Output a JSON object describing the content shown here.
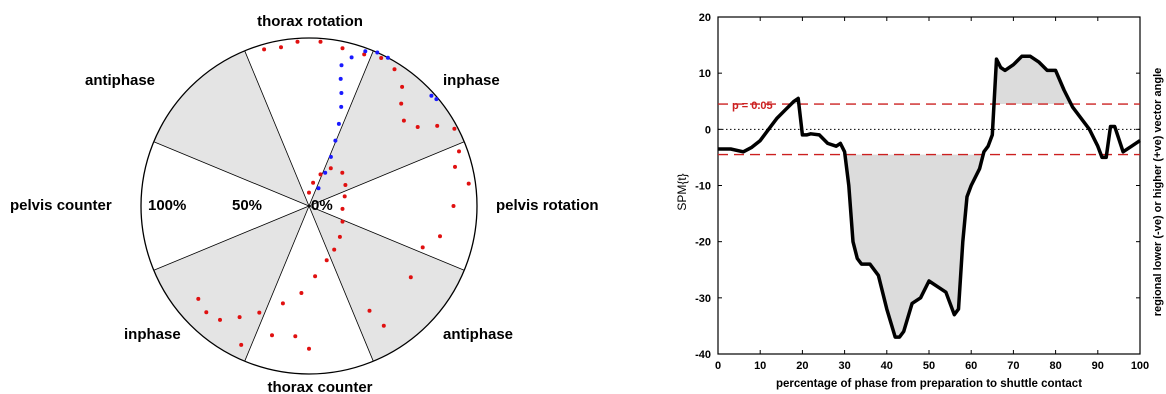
{
  "chart_data": [
    {
      "type": "polar-scatter",
      "sector_labels": {
        "top": "thorax rotation",
        "upper_right": "inphase",
        "right": "pelvis rotation",
        "lower_right": "antiphase",
        "bottom": "thorax counter",
        "lower_left": "inphase",
        "left": "pelvis counter",
        "upper_left": "antiphase"
      },
      "radial_labels": [
        "100%",
        "50%",
        "0%"
      ],
      "shaded_sectors_deg": [
        [
          22.5,
          67.5
        ],
        [
          112.5,
          157.5
        ],
        [
          202.5,
          247.5
        ],
        [
          292.5,
          337.5
        ]
      ],
      "colors": {
        "red_series": "#e01010",
        "blue_series": "#1a1aff",
        "shade": "#e4e4e4"
      },
      "series": [
        {
          "color": "red",
          "style": "dots",
          "points": [
            [
              0,
              0.08
            ],
            [
              10,
              0.14
            ],
            [
              20,
              0.2
            ],
            [
              30,
              0.26
            ],
            [
              45,
              0.28
            ],
            [
              60,
              0.25
            ],
            [
              75,
              0.22
            ],
            [
              95,
              0.2
            ],
            [
              115,
              0.22
            ],
            [
              135,
              0.26
            ],
            [
              150,
              0.3
            ],
            [
              162,
              0.34
            ],
            [
              175,
              0.42
            ],
            [
              185,
              0.52
            ],
            [
              195,
              0.6
            ],
            [
              205,
              0.7
            ],
            [
              212,
              0.78
            ],
            [
              218,
              0.86
            ],
            [
              224,
              0.88
            ],
            [
              230,
              0.86
            ],
            [
              206,
              0.92
            ],
            [
              196,
              0.8
            ],
            [
              186,
              0.78
            ],
            [
              180,
              0.85
            ],
            [
              150,
              0.72
            ],
            [
              148,
              0.84
            ],
            [
              125,
              0.74
            ],
            [
              110,
              0.72
            ],
            [
              103,
              0.8
            ],
            [
              90,
              0.86
            ],
            [
              82,
              0.96
            ],
            [
              75,
              0.9
            ],
            [
              70,
              0.95
            ],
            [
              62,
              0.98
            ],
            [
              58,
              0.9
            ],
            [
              54,
              0.8
            ],
            [
              48,
              0.76
            ],
            [
              42,
              0.82
            ],
            [
              38,
              0.9
            ],
            [
              32,
              0.96
            ],
            [
              26,
              0.98
            ],
            [
              20,
              0.96
            ],
            [
              12,
              0.96
            ],
            [
              4,
              0.98
            ],
            [
              -4,
              0.98
            ],
            [
              -10,
              0.96
            ],
            [
              -16,
              0.97
            ]
          ]
        },
        {
          "color": "blue",
          "style": "dots",
          "points": [
            [
              28,
              0.12
            ],
            [
              26,
              0.22
            ],
            [
              24,
              0.32
            ],
            [
              22,
              0.42
            ],
            [
              20,
              0.52
            ],
            [
              18,
              0.62
            ],
            [
              16,
              0.7
            ],
            [
              14,
              0.78
            ],
            [
              13,
              0.86
            ],
            [
              16,
              0.92
            ],
            [
              20,
              0.98
            ],
            [
              24,
              1.0
            ],
            [
              28,
              1.0
            ],
            [
              48,
              0.98
            ],
            [
              50,
              0.99
            ]
          ]
        }
      ]
    },
    {
      "type": "line",
      "title": "",
      "xlabel": "percentage of phase from preparation to shuttle contact",
      "ylabel": "SPM{t}",
      "ylabel_right": "regional lower (-ve) or higher (+ve) vector angle",
      "xlim": [
        0,
        100
      ],
      "ylim": [
        -40,
        20
      ],
      "xticks": [
        0,
        10,
        20,
        30,
        40,
        50,
        60,
        70,
        80,
        90,
        100
      ],
      "yticks": [
        20,
        10,
        0,
        -10,
        -20,
        -30,
        -40
      ],
      "threshold": 4.5,
      "threshold_label": "p = 0.05",
      "colors": {
        "line": "#000000",
        "threshold": "#cc2020",
        "fill": "#dcdcdc"
      },
      "series": [
        {
          "x": [
            0,
            3,
            6,
            8,
            10,
            12,
            14,
            16,
            18,
            19,
            20,
            21,
            22,
            24,
            26,
            28,
            29,
            30,
            31,
            32,
            33,
            34,
            36,
            38,
            40,
            42,
            43,
            44,
            46,
            48,
            50,
            52,
            54,
            56,
            57,
            58,
            59,
            60,
            62,
            63,
            64,
            65,
            66,
            67,
            68,
            70,
            72,
            74,
            76,
            78,
            80,
            82,
            84,
            86,
            88,
            90,
            91,
            92,
            93,
            94,
            96,
            98,
            100
          ],
          "y": [
            -3.5,
            -3.5,
            -4,
            -3.2,
            -2,
            0,
            2,
            3.5,
            5,
            5.5,
            -1,
            -1,
            -0.8,
            -1,
            -2.5,
            -3,
            -2.5,
            -4,
            -10,
            -20,
            -23,
            -24,
            -24,
            -26,
            -32,
            -37,
            -37,
            -36,
            -31,
            -30,
            -27,
            -28,
            -29,
            -33,
            -32,
            -20,
            -12,
            -10,
            -7,
            -4,
            -3,
            -1,
            12.5,
            11,
            10.5,
            11.5,
            13,
            13,
            12,
            10.5,
            10.5,
            7,
            4,
            2,
            0,
            -3,
            -5,
            -5,
            0.5,
            0.5,
            -4,
            -3,
            -2
          ]
        }
      ]
    }
  ]
}
